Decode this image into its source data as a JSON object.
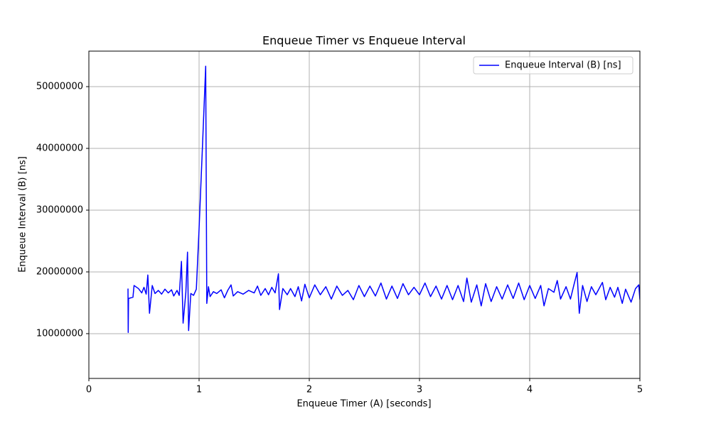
{
  "chart_data": {
    "type": "line",
    "title": "Enqueue Timer vs Enqueue Interval",
    "x_label": "Enqueue Timer (A) [seconds]",
    "y_label": "Enqueue Interval (B) [ns]",
    "x": [
      0.355,
      0.357,
      0.36,
      0.4,
      0.41,
      0.45,
      0.48,
      0.5,
      0.52,
      0.535,
      0.55,
      0.575,
      0.6,
      0.63,
      0.66,
      0.69,
      0.72,
      0.75,
      0.77,
      0.8,
      0.82,
      0.84,
      0.855,
      0.88,
      0.895,
      0.905,
      0.925,
      0.95,
      0.975,
      1.0,
      1.03,
      1.06,
      1.07,
      1.085,
      1.1,
      1.13,
      1.16,
      1.2,
      1.23,
      1.26,
      1.29,
      1.31,
      1.35,
      1.4,
      1.45,
      1.5,
      1.53,
      1.56,
      1.6,
      1.63,
      1.66,
      1.69,
      1.72,
      1.73,
      1.76,
      1.8,
      1.83,
      1.87,
      1.9,
      1.93,
      1.96,
      2.0,
      2.05,
      2.1,
      2.15,
      2.2,
      2.25,
      2.3,
      2.35,
      2.4,
      2.45,
      2.5,
      2.55,
      2.6,
      2.65,
      2.7,
      2.75,
      2.8,
      2.85,
      2.9,
      2.95,
      3.0,
      3.05,
      3.1,
      3.15,
      3.2,
      3.25,
      3.3,
      3.35,
      3.4,
      3.43,
      3.47,
      3.52,
      3.56,
      3.6,
      3.65,
      3.7,
      3.75,
      3.8,
      3.85,
      3.9,
      3.95,
      4.0,
      4.05,
      4.1,
      4.13,
      4.17,
      4.22,
      4.25,
      4.28,
      4.33,
      4.37,
      4.4,
      4.43,
      4.45,
      4.48,
      4.52,
      4.56,
      4.6,
      4.66,
      4.69,
      4.73,
      4.77,
      4.8,
      4.84,
      4.87,
      4.92,
      4.96,
      4.99,
      5.0
    ],
    "series": [
      {
        "name": "Enqueue Interval (B) [ns]",
        "color": "#0000ff",
        "values": [
          17300000,
          10200000,
          15700000,
          15900000,
          17800000,
          17300000,
          16600000,
          17500000,
          16400000,
          19500000,
          13300000,
          17800000,
          16500000,
          17000000,
          16400000,
          17200000,
          16600000,
          17100000,
          16100000,
          17000000,
          16200000,
          21700000,
          11700000,
          16700000,
          23200000,
          10500000,
          16500000,
          16200000,
          17200000,
          27000000,
          40000000,
          53300000,
          14900000,
          17600000,
          16000000,
          16800000,
          16500000,
          17100000,
          15800000,
          17000000,
          17900000,
          16100000,
          16800000,
          16400000,
          17000000,
          16600000,
          17700000,
          16200000,
          17300000,
          16300000,
          17500000,
          16600000,
          19700000,
          13900000,
          17300000,
          16300000,
          17300000,
          16000000,
          17600000,
          15300000,
          18000000,
          15800000,
          17900000,
          16300000,
          17600000,
          15600000,
          17700000,
          16200000,
          17000000,
          15500000,
          17800000,
          16000000,
          17700000,
          16100000,
          18200000,
          15600000,
          17700000,
          15700000,
          18100000,
          16300000,
          17500000,
          16300000,
          18200000,
          16000000,
          17700000,
          15600000,
          17800000,
          15500000,
          17800000,
          15200000,
          19000000,
          15100000,
          17900000,
          14500000,
          18100000,
          15200000,
          17600000,
          15600000,
          17900000,
          15700000,
          18200000,
          15500000,
          17800000,
          15700000,
          17800000,
          14500000,
          17300000,
          16700000,
          18600000,
          15600000,
          17600000,
          15600000,
          17800000,
          19900000,
          13300000,
          17800000,
          15200000,
          17600000,
          16300000,
          18300000,
          15500000,
          17500000,
          15900000,
          17500000,
          14900000,
          17200000,
          15100000,
          17300000,
          17900000,
          15500000
        ]
      }
    ],
    "xlim": [
      0,
      5
    ],
    "xticks": [
      0,
      1,
      2,
      3,
      4,
      5
    ],
    "ylim": [
      2750000,
      55750000
    ],
    "yticks": [
      10000000,
      20000000,
      30000000,
      40000000,
      50000000
    ],
    "grid": true,
    "legend": "upper right"
  }
}
